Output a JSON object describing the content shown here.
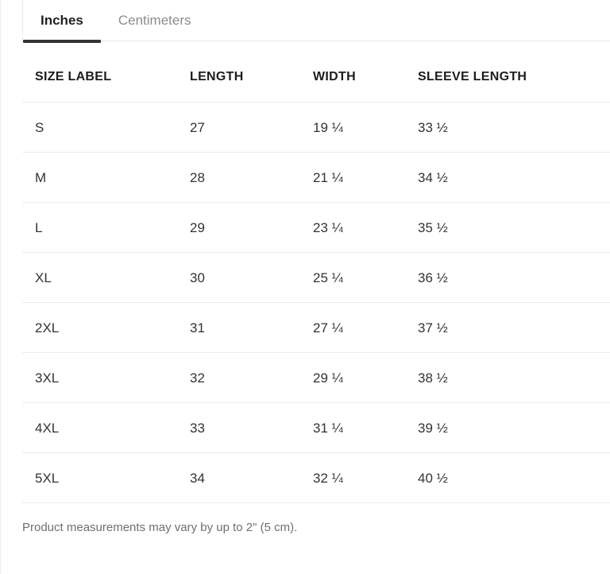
{
  "unit_tabs": {
    "inches_label": "Inches",
    "centimeters_label": "Centimeters",
    "selected": "Inches"
  },
  "table": {
    "headers": {
      "size_label": "SIZE LABEL",
      "length": "LENGTH",
      "width": "WIDTH",
      "sleeve_length": "SLEEVE LENGTH"
    },
    "rows": [
      {
        "size": "S",
        "length": "27",
        "width": "19 ¼",
        "sleeve": "33 ½"
      },
      {
        "size": "M",
        "length": "28",
        "width": "21 ¼",
        "sleeve": "34 ½"
      },
      {
        "size": "L",
        "length": "29",
        "width": "23 ¼",
        "sleeve": "35 ½"
      },
      {
        "size": "XL",
        "length": "30",
        "width": "25 ¼",
        "sleeve": "36 ½"
      },
      {
        "size": "2XL",
        "length": "31",
        "width": "27 ¼",
        "sleeve": "37 ½"
      },
      {
        "size": "3XL",
        "length": "32",
        "width": "29 ¼",
        "sleeve": "38 ½"
      },
      {
        "size": "4XL",
        "length": "33",
        "width": "31 ¼",
        "sleeve": "39 ½"
      },
      {
        "size": "5XL",
        "length": "34",
        "width": "32 ¼",
        "sleeve": "40 ½"
      }
    ]
  },
  "footnote": "Product measurements may vary by up to 2\" (5 cm).",
  "colors": {
    "active_tab_text": "#222222",
    "inactive_tab_text": "#8c8c8c",
    "active_tab_underline": "#333333",
    "divider": "#ececec",
    "header_text": "#1c1c1c",
    "cell_text": "#333333",
    "footnote_text": "#6f6f6f",
    "background": "#ffffff"
  }
}
